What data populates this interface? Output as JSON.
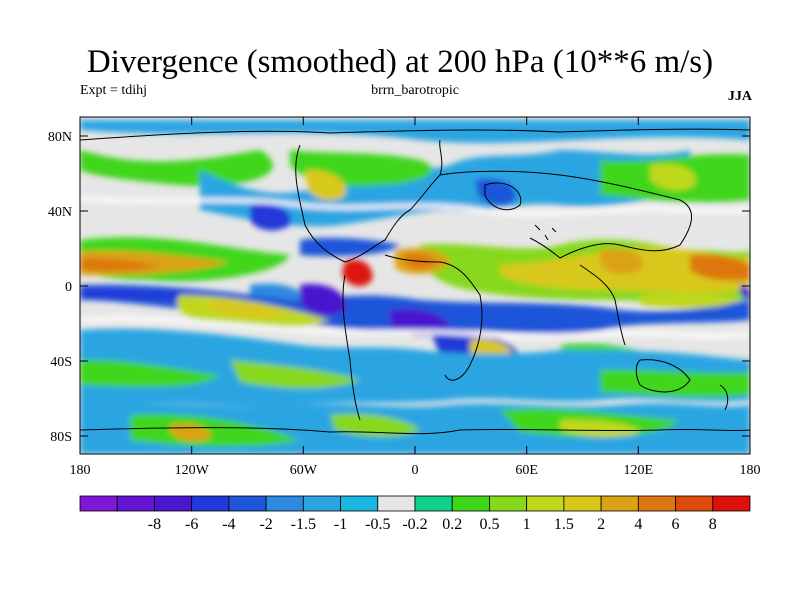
{
  "title": "Divergence (smoothed) at 200 hPa (10**6 m/s)",
  "expt_label": "Expt = tdihj",
  "model_label": "brrn_barotropic",
  "season": "JJA",
  "lat_ticks": [
    "80N",
    "40N",
    "0",
    "40S",
    "80S"
  ],
  "lon_ticks": [
    "180",
    "120W",
    "60W",
    "0",
    "60E",
    "120E",
    "180"
  ],
  "colorbar": {
    "colors": [
      "#7f18d6",
      "#6415d2",
      "#4a17cf",
      "#2238d8",
      "#1f55d9",
      "#2d8ae0",
      "#2aa5e2",
      "#1ab5e0",
      "#e6e6e6",
      "#12cf8c",
      "#3fd61a",
      "#86d81a",
      "#c0d81a",
      "#d9c81a",
      "#dca216",
      "#dd7710",
      "#dd4b0c",
      "#dd120c"
    ],
    "labels": [
      "-8",
      "-6",
      "-4",
      "-2",
      "-1.5",
      "-1",
      "-0.5",
      "-0.2",
      "0.2",
      "0.5",
      "1",
      "1.5",
      "2",
      "4",
      "6",
      "8"
    ]
  }
}
